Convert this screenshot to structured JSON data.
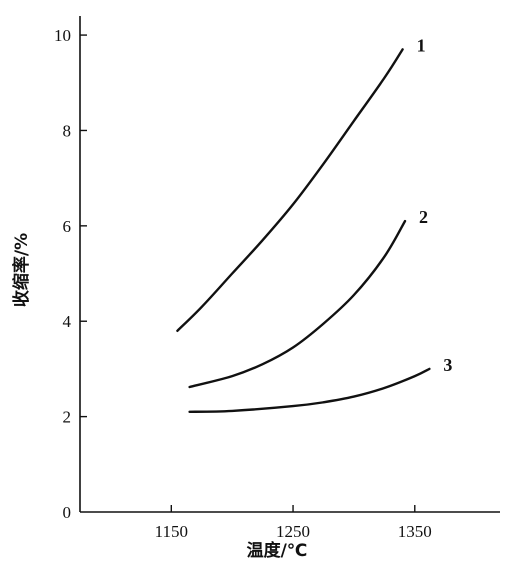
{
  "chart_data": {
    "type": "line",
    "title": "",
    "xlabel": "温度/℃",
    "ylabel": "收缩率/%",
    "xlim": [
      1075,
      1420
    ],
    "ylim": [
      0,
      10.4
    ],
    "xticks": [
      1150,
      1250,
      1350
    ],
    "yticks": [
      0,
      2,
      4,
      6,
      8,
      10
    ],
    "grid": false,
    "series": [
      {
        "name": "1",
        "x": [
          1155,
          1175,
          1200,
          1225,
          1250,
          1275,
          1300,
          1325,
          1340
        ],
        "y": [
          3.8,
          4.3,
          5.0,
          5.7,
          6.45,
          7.3,
          8.2,
          9.1,
          9.7
        ]
      },
      {
        "name": "2",
        "x": [
          1165,
          1200,
          1225,
          1250,
          1275,
          1300,
          1325,
          1342
        ],
        "y": [
          2.62,
          2.85,
          3.1,
          3.45,
          3.95,
          4.55,
          5.35,
          6.1
        ]
      },
      {
        "name": "3",
        "x": [
          1165,
          1200,
          1250,
          1275,
          1300,
          1325,
          1350,
          1362
        ],
        "y": [
          2.1,
          2.12,
          2.22,
          2.3,
          2.42,
          2.6,
          2.85,
          3.0
        ]
      }
    ]
  }
}
